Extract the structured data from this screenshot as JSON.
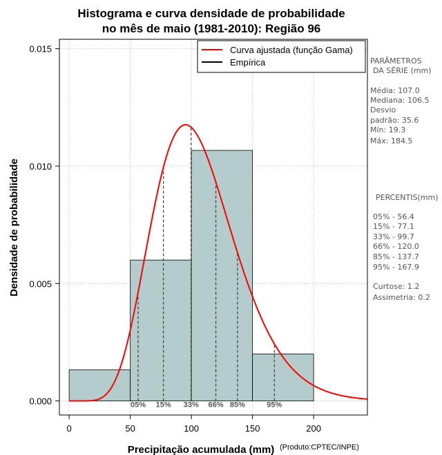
{
  "chart_data": {
    "type": "histogram",
    "title_line1": "Histograma e curva densidade de probabilidade",
    "title_line2": "no mês de maio (1981-2010): Região 96",
    "xlabel": "Precipitação acumulada (mm)",
    "ylabel": "Densidade de probabilidade",
    "credit": "(Produto:CPTEC/INPE)",
    "xlim": [
      -8,
      244
    ],
    "ylim": [
      -0.0006,
      0.0154
    ],
    "x_ticks": [
      0,
      50,
      100,
      150,
      200
    ],
    "x_tick_labels": [
      "0",
      "50",
      "100",
      "150",
      "200"
    ],
    "y_ticks": [
      0.0,
      0.005,
      0.01,
      0.015
    ],
    "y_tick_labels": [
      "0.000",
      "0.005",
      "0.010",
      "0.015"
    ],
    "bins": [
      {
        "from": 0,
        "to": 50,
        "density": 0.00133
      },
      {
        "from": 50,
        "to": 100,
        "density": 0.006
      },
      {
        "from": 100,
        "to": 150,
        "density": 0.01067
      },
      {
        "from": 150,
        "to": 200,
        "density": 0.002
      }
    ],
    "gamma_fit": {
      "shape": 9.04,
      "scale": 11.84
    },
    "legend": [
      {
        "label": "Curva ajustada (função Gama)",
        "color": "#ff0000"
      },
      {
        "label": "Empírica",
        "color": "#000000"
      }
    ],
    "percentile_marks": [
      {
        "label": "05%",
        "value": 56.4
      },
      {
        "label": "15%",
        "value": 77.1
      },
      {
        "label": "33%",
        "value": 99.7
      },
      {
        "label": "66%",
        "value": 120.0
      },
      {
        "label": "85%",
        "value": 137.7
      },
      {
        "label": "95%",
        "value": 167.9
      }
    ],
    "colors": {
      "bar_fill": "#b4cccc",
      "curve": "#ff0000",
      "grid": "#bbbbbb"
    }
  },
  "side_panel": {
    "params_title_1": "PARÂMETROS",
    "params_title_2": "DA SÉRIE (mm)",
    "media": "Média:  107.0",
    "mediana": "Mediana:  106.5",
    "desvio_1": "Desvio",
    "desvio_2": "padrão:  35.6",
    "min": "Mín:  19.3",
    "max": "Máx:  184.5",
    "percentis_title": "PERCENTIS(mm)",
    "p05": "05% -  56.4",
    "p15": "15% -  77.1",
    "p33": "33% -  99.7",
    "p66": "66% -  120.0",
    "p85": "85% -  137.7",
    "p95": "95% -  167.9",
    "curtose": "Curtose:  1.2",
    "assimetria": "Assimetria:  0.2"
  }
}
